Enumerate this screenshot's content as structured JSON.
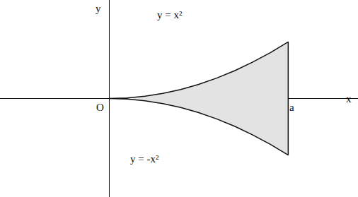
{
  "chart_data": {
    "type": "area",
    "x": [
      0,
      0.1,
      0.2,
      0.3,
      0.4,
      0.5,
      0.6,
      0.7,
      0.8,
      0.9,
      1.0
    ],
    "series": [
      {
        "name": "y = x²",
        "values": [
          0,
          0.01,
          0.04,
          0.09,
          0.16,
          0.25,
          0.36,
          0.49,
          0.64,
          0.81,
          1.0
        ]
      },
      {
        "name": "y = -x²",
        "values": [
          0,
          -0.01,
          -0.04,
          -0.09,
          -0.16,
          -0.25,
          -0.36,
          -0.49,
          -0.64,
          -0.81,
          -1.0
        ]
      }
    ],
    "color": "#e3e3e3",
    "x_label": "x",
    "y_label": "y",
    "xlim": [
      -0.61,
      1.39
    ],
    "ylim": [
      -1.74,
      1.74
    ],
    "tick_labels": false,
    "grid": false,
    "annotations": [
      {
        "text": "O",
        "x": -0.05,
        "y": -0.15
      },
      {
        "text": "a",
        "x": 1.02,
        "y": -0.15
      },
      {
        "text": "y = x²",
        "x": 0.34,
        "y": 1.48
      },
      {
        "text": "y = -x²",
        "x": 0.2,
        "y": -1.07
      }
    ]
  }
}
